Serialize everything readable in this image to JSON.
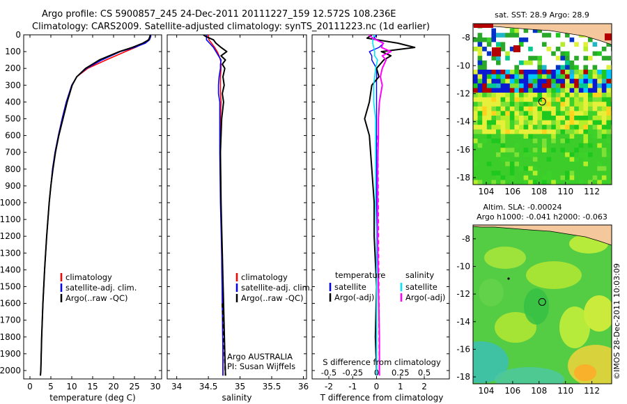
{
  "header": {
    "line1": "Argo profile: CS 5900857_245 24-Dec-2011 20111227_159 12.572S 108.236E",
    "line2": "Climatology: CARS2009. Satellite-adjusted climatology: synTS_20111223.nc (1d earlier)"
  },
  "side_label": "©IMOS 28-Dec-2011 10:03:09",
  "colors": {
    "climatology": "#ff0000",
    "satellite": "#0000ff",
    "argo": "#000000",
    "satellite_salinity": "#00e5ff",
    "argo_salinity": "#ff00ff",
    "land": "#f4c79c"
  },
  "chart_data": [
    {
      "type": "line",
      "xlabel": "temperature (deg C)",
      "ylim": [
        2050,
        0
      ],
      "xlim": [
        -1.5,
        31.5
      ],
      "xticks": [
        "0",
        "5",
        "10",
        "15",
        "20",
        "25",
        "30"
      ],
      "yticks": [
        "0",
        "100",
        "200",
        "300",
        "400",
        "500",
        "600",
        "700",
        "800",
        "900",
        "1000",
        "1100",
        "1200",
        "1300",
        "1400",
        "1500",
        "1600",
        "1700",
        "1800",
        "1900",
        "2000"
      ],
      "legend": [
        "climatology",
        "satellite-adj. clim.",
        "Argo(..raw -QC)"
      ],
      "legend_position": "lower-center",
      "depth": [
        0,
        10,
        30,
        50,
        75,
        100,
        150,
        200,
        250,
        300,
        400,
        500,
        600,
        700,
        800,
        900,
        1000,
        1200,
        1400,
        1600,
        1800,
        2000,
        2030
      ],
      "series": [
        {
          "name": "climatology",
          "values": [
            28.9,
            28.8,
            28.3,
            27.2,
            25.2,
            22.8,
            18.2,
            13.8,
            11.2,
            10.0,
            8.7,
            7.7,
            6.8,
            6.0,
            5.4,
            5.0,
            4.6,
            4.0,
            3.5,
            3.1,
            2.8,
            2.6,
            2.5
          ]
        },
        {
          "name": "satellite-adj. clim.",
          "values": [
            28.9,
            28.9,
            28.6,
            27.6,
            25.0,
            21.6,
            17.2,
            13.5,
            11.2,
            10.0,
            8.7,
            7.7,
            6.8,
            6.0,
            5.4,
            5.0,
            4.6,
            4.0,
            3.5,
            3.1,
            2.8,
            2.6,
            2.5
          ]
        },
        {
          "name": "Argo(..raw -QC)",
          "values": [
            28.8,
            28.7,
            28.4,
            27.0,
            24.5,
            21.4,
            16.6,
            13.3,
            11.2,
            10.1,
            8.9,
            7.9,
            6.9,
            6.1,
            5.5,
            5.0,
            4.6,
            4.0,
            3.5,
            3.1,
            2.8,
            2.6,
            2.5
          ]
        }
      ]
    },
    {
      "type": "line",
      "xlabel": "salinity",
      "ylim": [
        2050,
        0
      ],
      "xlim": [
        33.85,
        36.05
      ],
      "xticks": [
        "34",
        "34.5",
        "35",
        "35.5",
        "36"
      ],
      "legend": [
        "climatology",
        "satellite-adj. clim.",
        "Argo(..raw -QC)"
      ],
      "legend_position": "lower-right",
      "annotations": [
        "Argo AUSTRALIA",
        "PI: Susan Wijffels"
      ],
      "depth": [
        0,
        10,
        30,
        50,
        75,
        100,
        125,
        150,
        175,
        200,
        250,
        300,
        350,
        400,
        500,
        700,
        1000,
        1300,
        1600,
        1900,
        2030
      ],
      "series": [
        {
          "name": "climatology",
          "values": [
            34.5,
            34.5,
            34.51,
            34.55,
            34.6,
            34.64,
            34.67,
            34.69,
            34.7,
            34.7,
            34.69,
            34.69,
            34.69,
            34.7,
            34.69,
            34.69,
            34.7,
            34.71,
            34.72,
            34.73,
            34.73
          ]
        },
        {
          "name": "satellite-adj. clim.",
          "values": [
            34.48,
            34.47,
            34.47,
            34.52,
            34.58,
            34.62,
            34.66,
            34.7,
            34.69,
            34.69,
            34.67,
            34.66,
            34.66,
            34.68,
            34.68,
            34.68,
            34.69,
            34.71,
            34.72,
            34.73,
            34.73
          ]
        },
        {
          "name": "Argo(..raw -QC)",
          "values": [
            34.42,
            34.46,
            34.58,
            34.62,
            34.7,
            34.79,
            34.7,
            34.77,
            34.72,
            34.76,
            34.73,
            34.75,
            34.72,
            34.74,
            34.71,
            34.69,
            34.7,
            34.72,
            34.74,
            34.76,
            34.77
          ]
        }
      ]
    },
    {
      "type": "line",
      "xlabel": "T difference from climatology",
      "xlabel_top": "S difference from climatology",
      "ylim": [
        2050,
        0
      ],
      "xlim": [
        -2.7,
        3.05
      ],
      "xticks": [
        "-2",
        "-1",
        "0",
        "1",
        "2"
      ],
      "xticks_secondary": [
        "-0.5",
        "-0.25",
        "0",
        "0.25",
        "0.5"
      ],
      "legend_titles": [
        "temperature",
        "salinity"
      ],
      "legend": [
        "satellite",
        "Argo(-adj)",
        "satellite",
        "Argo(-adj)"
      ],
      "legend_position": "lower",
      "depth": [
        0,
        20,
        50,
        75,
        100,
        125,
        150,
        200,
        250,
        300,
        400,
        500,
        600,
        800,
        1000,
        1200,
        1500,
        1800,
        2000,
        2030
      ],
      "series": [
        {
          "name": "temperature satellite",
          "values": [
            0.0,
            -0.1,
            0.3,
            0.1,
            -0.3,
            -0.2,
            -0.2,
            0.0,
            0.0,
            0.0,
            0.0,
            0.0,
            0.0,
            0.0,
            0.0,
            0.0,
            0.0,
            0.0,
            0.0,
            0.0
          ]
        },
        {
          "name": "temperature Argo(-adj)",
          "values": [
            -0.2,
            -0.4,
            0.9,
            1.6,
            0.2,
            0.6,
            0.3,
            0.0,
            0.1,
            -0.2,
            -0.3,
            -0.5,
            -0.3,
            -0.2,
            -0.1,
            -0.1,
            0.0,
            -0.05,
            0.0,
            0.0
          ]
        },
        {
          "name": "salinity satellite",
          "values": [
            -0.02,
            -0.04,
            -0.04,
            -0.03,
            -0.02,
            -0.02,
            0.01,
            -0.01,
            -0.02,
            -0.03,
            -0.03,
            -0.01,
            -0.01,
            -0.01,
            -0.01,
            0.0,
            0.0,
            0.0,
            0.0,
            0.0
          ]
        },
        {
          "name": "salinity Argo(-adj)",
          "values": [
            -0.08,
            -0.04,
            0.07,
            0.05,
            0.15,
            0.06,
            0.1,
            0.06,
            0.04,
            0.06,
            0.03,
            0.02,
            0.02,
            0.01,
            0.01,
            0.01,
            0.02,
            0.03,
            0.03,
            0.03
          ]
        }
      ]
    },
    {
      "type": "heatmap",
      "title": "sat. SST: 28.9  Argo: 28.9",
      "xlim": [
        103,
        113.5
      ],
      "ylim": [
        -18.5,
        -7
      ],
      "xticks": [
        "104",
        "106",
        "108",
        "110",
        "112"
      ],
      "yticks": [
        "-8",
        "-10",
        "-12",
        "-14",
        "-16",
        "-18"
      ],
      "marker": {
        "lon": 108.236,
        "lat": -12.572
      }
    },
    {
      "type": "heatmap",
      "title": "Altim. SLA: -0.00024",
      "subtitle": "Argo h1000: -0.041 h2000: -0.063",
      "xlim": [
        103,
        113.5
      ],
      "ylim": [
        -18.5,
        -7
      ],
      "xticks": [
        "104",
        "106",
        "108",
        "110",
        "112"
      ],
      "yticks": [
        "-8",
        "-10",
        "-12",
        "-14",
        "-16",
        "-18"
      ],
      "marker": {
        "lon": 108.236,
        "lat": -12.572
      }
    }
  ]
}
